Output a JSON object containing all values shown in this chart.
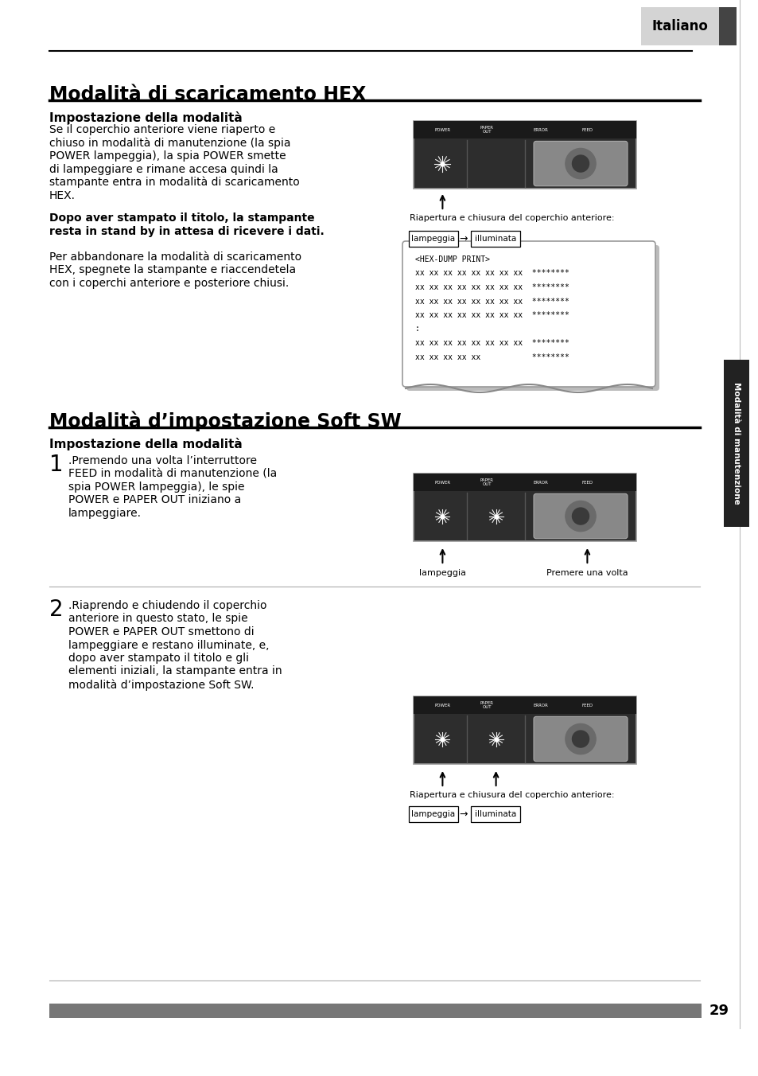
{
  "page_title": "Italiano",
  "section1_title": "Modalità di scaricamento HEX",
  "section1_subtitle": "Impostazione della modalità",
  "section1_text1_lines": [
    "Se il coperchio anteriore viene riaperto e",
    "chiuso in modalità di manutenzione (la spia",
    "POWER lampeggia), la spia POWER smette",
    "di lampeggiare e rimane accesa quindi la",
    "stampante entra in modalità di scaricamento",
    "HEX."
  ],
  "section1_text2_lines": [
    "Dopo aver stampato il titolo, la stampante",
    "resta in stand by in attesa di ricevere i dati."
  ],
  "section1_text3_lines": [
    "Per abbandonare la modalità di scaricamento",
    "HEX, spegnete la stampante e riaccendetela",
    "con i coperchi anteriore e posteriore chiusi."
  ],
  "caption1": "Riapertura e chiusura del coperchio anteriore:",
  "hex_dump_lines": [
    "<HEX-DUMP PRINT>",
    "xx xx xx xx xx xx xx xx  ********",
    "xx xx xx xx xx xx xx xx  ********",
    "xx xx xx xx xx xx xx xx  ********",
    "xx xx xx xx xx xx xx xx  ********",
    ":",
    "xx xx xx xx xx xx xx xx  ********",
    "xx xx xx xx xx           ********"
  ],
  "section2_title": "Modalità d’impostazione Soft SW",
  "section2_subtitle": "Impostazione della modalità",
  "step1_text_lines": [
    ".Premendo una volta l’interruttore",
    "FEED in modalità di manutenzione (la",
    "spia POWER lampeggia), le spie",
    "POWER e PAPER OUT iniziano a",
    "lampeggiare."
  ],
  "caption2a": "lampeggia",
  "caption2b": "Premere una volta",
  "step2_text_lines": [
    ".Riaprendo e chiudendo il coperchio",
    "anteriore in questo stato, le spie",
    "POWER e PAPER OUT smettono di",
    "lampeggiare e restano illuminate, e,",
    "dopo aver stampato il titolo e gli",
    "elementi iniziali, la stampante entra in",
    "modalità d’impostazione Soft SW."
  ],
  "caption3": "Riapertura e chiusura del coperchio anteriore:",
  "page_number": "29",
  "side_label": "Modalità di manutenzione",
  "bg_color": "#ffffff",
  "text_color": "#000000",
  "gray_bar_color": "#777777",
  "panel_bg": "#2d2d2d",
  "panel_label_bg": "#1a1a1a",
  "tab_bg": "#d4d4d4",
  "dark_tab": "#444444"
}
